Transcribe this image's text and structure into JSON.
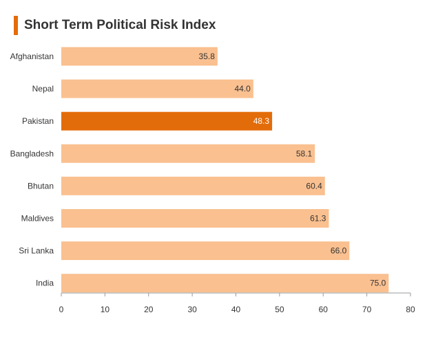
{
  "colors": {
    "accent": "#e36c0a",
    "bar": "#fac090",
    "bar_highlight": "#e36c0a",
    "label_dark": "#333333",
    "label_light": "#ffffff",
    "axis": "#999999"
  },
  "chart_data": {
    "type": "bar",
    "orientation": "horizontal",
    "title": "Short Term Political Risk Index",
    "categories": [
      "Afghanistan",
      "Nepal",
      "Pakistan",
      "Bangladesh",
      "Bhutan",
      "Maldives",
      "Sri Lanka",
      "India"
    ],
    "values": [
      35.8,
      44.0,
      48.3,
      58.1,
      60.4,
      61.3,
      66.0,
      75.0
    ],
    "value_labels": [
      "35.8",
      "44.0",
      "48.3",
      "58.1",
      "60.4",
      "61.3",
      "66.0",
      "75.0"
    ],
    "highlight": "Pakistan",
    "xlim": [
      0,
      80
    ],
    "x_ticks": [
      "0",
      "10",
      "20",
      "30",
      "40",
      "50",
      "60",
      "70",
      "80"
    ],
    "grid": false,
    "legend": "none"
  }
}
